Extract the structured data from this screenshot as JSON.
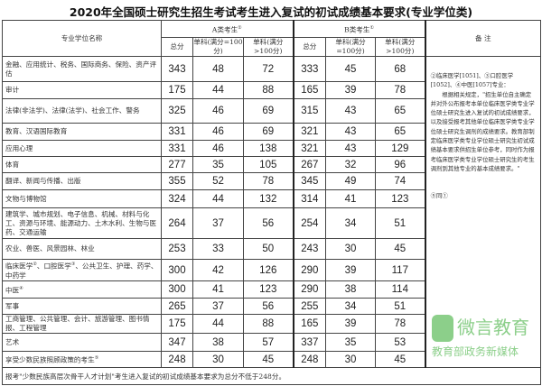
{
  "title": "2020年全国硕士研究生招生考试考生进入复试的初试成绩基本要求(专业学位类)",
  "header": {
    "name_col": "专业学位名称",
    "group_a": "A类考生",
    "group_a_mark": "①",
    "group_b": "B类考生",
    "group_b_mark": "①",
    "total": "总分",
    "single_le100": "单科(满分=100分)",
    "single_gt100": "单科(满分>100分)",
    "notes": "备    注"
  },
  "rows": [
    {
      "name": "金融、应用统计、税务、国际商务、保险、资产评估",
      "mark": "",
      "a": [
        "343",
        "48",
        "72"
      ],
      "b": [
        "333",
        "45",
        "68"
      ]
    },
    {
      "name": "审计",
      "mark": "",
      "a": [
        "175",
        "44",
        "88"
      ],
      "b": [
        "165",
        "39",
        "78"
      ]
    },
    {
      "name": "法律(非法学)、法律(法学)、社会工作、警务",
      "mark": "",
      "a": [
        "325",
        "46",
        "69"
      ],
      "b": [
        "315",
        "43",
        "65"
      ]
    },
    {
      "name": "教育、汉语国际教育",
      "mark": "",
      "a": [
        "331",
        "46",
        "69"
      ],
      "b": [
        "321",
        "43",
        "65"
      ]
    },
    {
      "name": "应用心理",
      "mark": "",
      "a": [
        "331",
        "46",
        "138"
      ],
      "b": [
        "321",
        "43",
        "129"
      ]
    },
    {
      "name": "体育",
      "mark": "",
      "a": [
        "277",
        "35",
        "105"
      ],
      "b": [
        "267",
        "32",
        "96"
      ]
    },
    {
      "name": "翻译、新闻与传播、出版",
      "mark": "",
      "a": [
        "355",
        "52",
        "78"
      ],
      "b": [
        "345",
        "49",
        "74"
      ]
    },
    {
      "name": "文物与博物馆",
      "mark": "",
      "a": [
        "324",
        "44",
        "132"
      ],
      "b": [
        "314",
        "41",
        "123"
      ]
    },
    {
      "name": "建筑学、城市规划、电子信息、机械、材料与化工、资源与环境、能源动力、土木水利、生物与医药、交通运输",
      "mark": "",
      "a": [
        "264",
        "37",
        "56"
      ],
      "b": [
        "254",
        "34",
        "51"
      ]
    },
    {
      "name": "农业、兽医、风景园林、林业",
      "mark": "",
      "a": [
        "253",
        "33",
        "50"
      ],
      "b": [
        "243",
        "30",
        "45"
      ]
    },
    {
      "name_parts": [
        "临床医学",
        "②",
        "、口腔医学",
        "③",
        "、公共卫生、护理、药学、中药学"
      ],
      "a": [
        "300",
        "42",
        "126"
      ],
      "b": [
        "290",
        "39",
        "117"
      ]
    },
    {
      "name": "中医",
      "mark": "④",
      "a": [
        "300",
        "41",
        "123"
      ],
      "b": [
        "290",
        "38",
        "114"
      ]
    },
    {
      "name": "军事",
      "mark": "",
      "a": [
        "265",
        "37",
        "56"
      ],
      "b": [
        "255",
        "34",
        "51"
      ]
    },
    {
      "name": "工商管理、公共管理、会计、旅游管理、图书情报、工程管理",
      "mark": "",
      "a": [
        "175",
        "44",
        "88"
      ],
      "b": [
        "165",
        "39",
        "78"
      ]
    },
    {
      "name": "艺术",
      "mark": "",
      "a": [
        "347",
        "38",
        "57"
      ],
      "b": [
        "337",
        "35",
        "53"
      ]
    },
    {
      "name": "享受少数民族照顾政策的考生",
      "mark": "⑤",
      "a": [
        "248",
        "30",
        "45"
      ],
      "b": [
        "248",
        "30",
        "45"
      ]
    }
  ],
  "notes": {
    "line1": "②临床医学[1051]、③口腔医学[1052]、④中医[1057]专业：",
    "line2": "　　根据相关规定，\"招生单位自主确定并对外公布报考本单位临床医学类专业学位硕士研究生进入复试的初试成绩要求，以及接受报考其他单位临床医学类专业学位硕士研究生调剂的成绩要求。教育部制定临床医学类专业学位硕士研究生初试成绩基本要求供招生单位参考，同时作为报考临床医学类专业学位硕士研究生的考生调剂到其他专业的基本成绩要求。\"",
    "line3": "⑤同①"
  },
  "footer": "报考\"少数民族高层次骨干人才计划\"考生进入复试的初试成绩基本要求为总分不低于248分。",
  "watermark": {
    "line1": "微言教育",
    "line2": "教育部政务新媒体",
    "color": "#8ccf8a"
  }
}
